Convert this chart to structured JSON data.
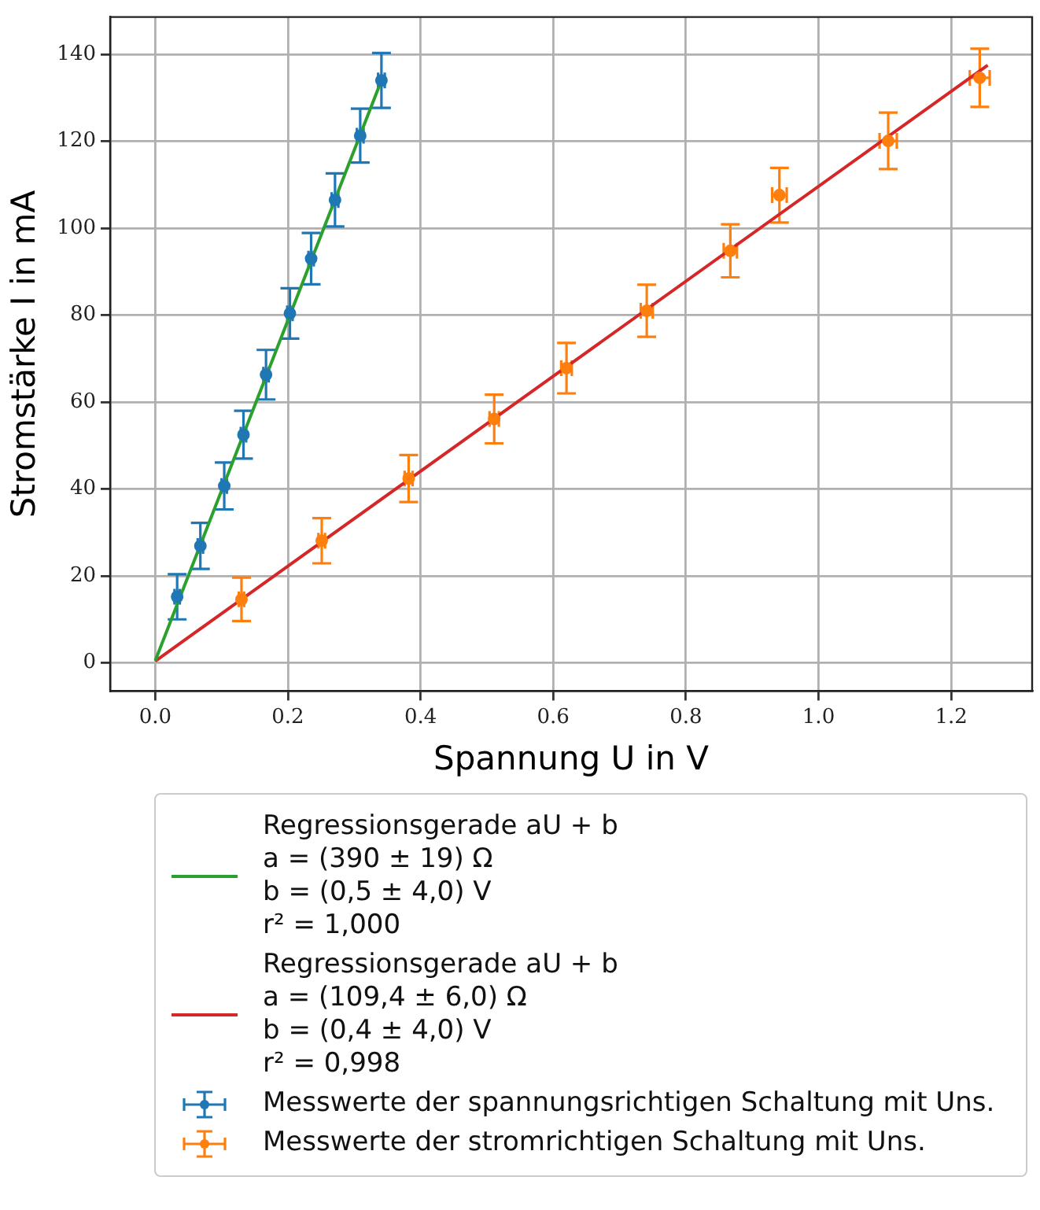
{
  "chart_data": {
    "type": "scatter",
    "xlabel": "Spannung U in V",
    "ylabel": "Stromstärke I in mA",
    "xlim": [
      -0.068,
      1.322
    ],
    "ylim": [
      -6.5,
      148.6
    ],
    "xticks": [
      {
        "value": 0,
        "label": "0.0"
      },
      {
        "value": 0.2,
        "label": "0.2"
      },
      {
        "value": 0.4,
        "label": "0.4"
      },
      {
        "value": 0.6,
        "label": "0.6"
      },
      {
        "value": 0.8,
        "label": "0.8"
      },
      {
        "value": 1,
        "label": "1.0"
      },
      {
        "value": 1.2,
        "label": "1.2"
      }
    ],
    "yticks": [
      0,
      20,
      40,
      60,
      80,
      100,
      120,
      140
    ],
    "grid": true,
    "legend": "bottom",
    "series": [
      {
        "type": "line",
        "name": "Regressionsgerade aU + b\na = (390 ± 19) Ω\nb = (0,5 ± 4,0) V\nr² = 1,000",
        "color": "#2ca02c",
        "x": [
          0,
          0.343
        ],
        "values": [
          0.5,
          134.8
        ],
        "marker": "none"
      },
      {
        "type": "line",
        "name": "Regressionsgerade aU + b\na = (109,4 ± 6,0) Ω\nb = (0,4 ± 4,0) V\nr² = 0,998",
        "color": "#d62728",
        "x": [
          0,
          1.255
        ],
        "values": [
          0.4,
          137.5
        ],
        "marker": "none"
      },
      {
        "name": "Messwerte der spannungsrichtigen Schaltung mit Uns.",
        "color": "#1f77b4",
        "marker": "circle",
        "x": [
          0.033,
          0.068,
          0.104,
          0.133,
          0.167,
          0.203,
          0.235,
          0.271,
          0.309,
          0.341
        ],
        "values": [
          15.2,
          26.9,
          40.7,
          52.5,
          66.3,
          80.4,
          93,
          106.5,
          121.3,
          134
        ],
        "errors": [
          5.2,
          5.3,
          5.4,
          5.5,
          5.7,
          5.8,
          5.9,
          6.1,
          6.2,
          6.3
        ],
        "xerrors": [
          0.004,
          0.004,
          0.004,
          0.004,
          0.004,
          0.004,
          0.004,
          0.005,
          0.005,
          0.005
        ]
      },
      {
        "name": "Messwerte der stromrichtigen Schaltung mit Uns.",
        "color": "#ff7f0e",
        "marker": "circle",
        "x": [
          0.13,
          0.251,
          0.382,
          0.511,
          0.62,
          0.741,
          0.867,
          0.941,
          1.105,
          1.243
        ],
        "values": [
          14.6,
          28.1,
          42.4,
          56.1,
          67.8,
          81,
          94.8,
          107.6,
          120.1,
          134.6
        ],
        "errors": [
          5,
          5.2,
          5.4,
          5.6,
          5.8,
          6,
          6.1,
          6.3,
          6.5,
          6.7
        ],
        "xerrors": [
          0.004,
          0.005,
          0.006,
          0.007,
          0.008,
          0.009,
          0.01,
          0.011,
          0.013,
          0.015
        ]
      }
    ]
  }
}
